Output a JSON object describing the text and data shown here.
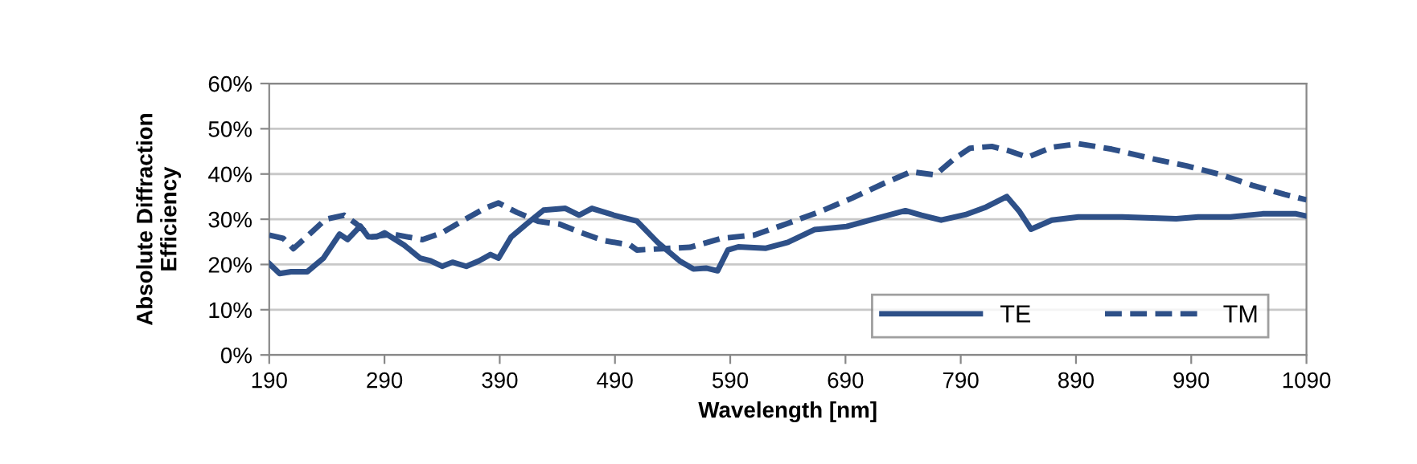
{
  "chart_data": {
    "type": "line",
    "xlabel": "Wavelength [nm]",
    "ylabel": "Absolute Diffraction\nEfficiency",
    "xlim": [
      190,
      1090
    ],
    "xticks": [
      190,
      290,
      390,
      490,
      590,
      690,
      790,
      890,
      990,
      1090
    ],
    "ylim": [
      0,
      60
    ],
    "yticks": [
      {
        "value": 0,
        "label": "0%"
      },
      {
        "value": 10,
        "label": "10%"
      },
      {
        "value": 20,
        "label": "20%"
      },
      {
        "value": 30,
        "label": "30%"
      },
      {
        "value": 40,
        "label": "40%"
      },
      {
        "value": 50,
        "label": "50%"
      },
      {
        "value": 60,
        "label": "60%"
      }
    ],
    "grid": "y",
    "legend": "bottom right",
    "marker": "none",
    "series": [
      {
        "name": "TE",
        "color": "#2e5088",
        "line_style": "solid",
        "x": [
          190,
          199,
          209,
          223,
          237,
          251,
          258,
          269,
          276,
          283,
          290,
          307,
          321,
          330,
          340,
          349,
          361,
          372,
          382,
          389,
          400,
          414,
          428,
          447,
          459,
          470,
          489,
          509,
          527,
          546,
          558,
          569,
          579,
          588,
          597,
          621,
          640,
          663,
          691,
          714,
          742,
          756,
          773,
          794,
          812,
          830,
          841,
          851,
          869,
          892,
          930,
          977,
          996,
          1024,
          1052,
          1081,
          1090
        ],
        "values": [
          20.2,
          18,
          18.4,
          18.4,
          21.4,
          26.7,
          25.5,
          28.5,
          26.1,
          26.1,
          27,
          24.3,
          21.4,
          20.8,
          19.6,
          20.5,
          19.6,
          20.8,
          22.2,
          21.4,
          26.1,
          29.1,
          32,
          32.4,
          30.9,
          32.4,
          30.9,
          29.6,
          24.9,
          20.8,
          19,
          19.2,
          18.6,
          23.2,
          23.9,
          23.6,
          24.9,
          27.7,
          28.4,
          30,
          31.9,
          30.9,
          29.8,
          31,
          32.7,
          35,
          31.7,
          27.8,
          29.8,
          30.5,
          30.5,
          30.1,
          30.5,
          30.5,
          31.2,
          31.2,
          30.7
        ]
      },
      {
        "name": "TM",
        "color": "#2e5088",
        "line_style": "dashed",
        "x": [
          190,
          202,
          211,
          225,
          239,
          255,
          265,
          279,
          297,
          323,
          340,
          358,
          377,
          389,
          405,
          424,
          442,
          461,
          480,
          503,
          509,
          532,
          555,
          583,
          611,
          640,
          668,
          696,
          724,
          747,
          768,
          784,
          798,
          817,
          831,
          848,
          869,
          892,
          921,
          954,
          986,
          1015,
          1043,
          1071,
          1090
        ],
        "values": [
          26.5,
          25.8,
          23.5,
          26.7,
          30,
          30.9,
          29.1,
          26.1,
          26.7,
          25.5,
          27,
          29.7,
          32.4,
          33.6,
          31.5,
          29.5,
          28.9,
          27,
          25.3,
          24.3,
          23.2,
          23.5,
          23.8,
          25.8,
          26.5,
          29.1,
          31.7,
          34.7,
          38,
          40.5,
          39.8,
          43.3,
          45.7,
          46.1,
          45.2,
          43.7,
          45.9,
          46.7,
          45.5,
          43.5,
          41.8,
          39.9,
          37.5,
          35.5,
          34.3
        ]
      }
    ]
  }
}
